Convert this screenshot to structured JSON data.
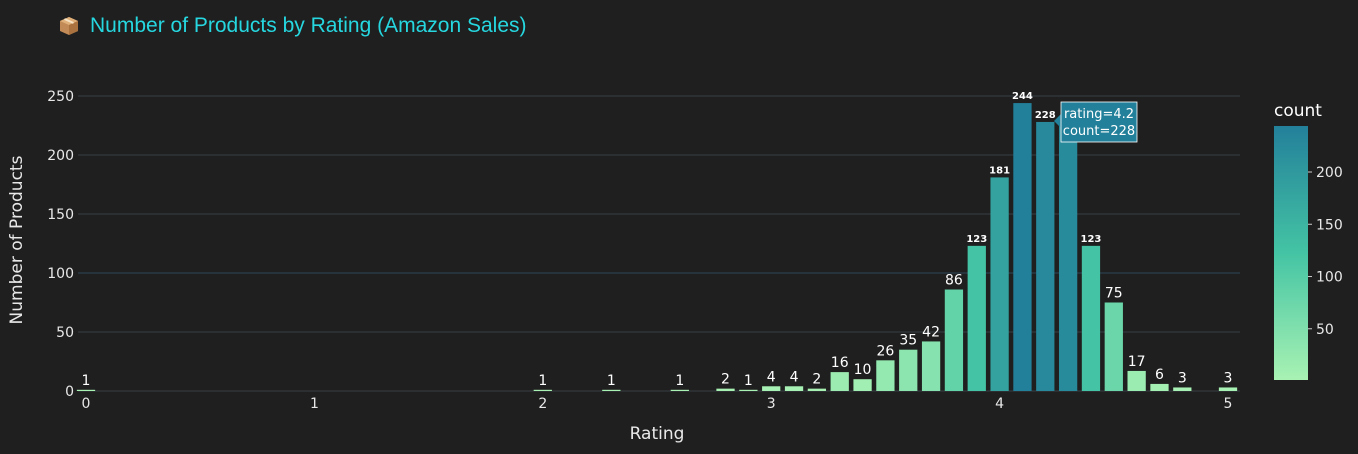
{
  "title": "Number of Products by Rating (Amazon Sales)",
  "title_icon": "package-icon",
  "colors": {
    "background": "#1f1f1f",
    "title": "#26d7e0",
    "grid": "#3a3f45",
    "text": "#e8e8e8",
    "scale_low": "#a8f2b3",
    "scale_mid": "#44c4a4",
    "scale_high": "#23809a"
  },
  "chart_data": {
    "type": "bar",
    "xlabel": "Rating",
    "ylabel": "Number of Products",
    "xlim": [
      0,
      5
    ],
    "ylim": [
      0,
      260
    ],
    "x_ticks": [
      "0",
      "1",
      "2",
      "3",
      "4",
      "5"
    ],
    "y_ticks": [
      "0",
      "50",
      "100",
      "150",
      "200",
      "250"
    ],
    "grid": true,
    "x": [
      0,
      2.0,
      2.3,
      2.6,
      2.8,
      2.9,
      3.0,
      3.1,
      3.2,
      3.3,
      3.4,
      3.5,
      3.6,
      3.7,
      3.8,
      3.9,
      4.0,
      4.1,
      4.2,
      4.3,
      4.4,
      4.5,
      4.6,
      4.7,
      4.8,
      5.0
    ],
    "values": [
      1,
      1,
      1,
      1,
      2,
      1,
      4,
      4,
      2,
      16,
      10,
      26,
      35,
      42,
      86,
      123,
      181,
      244,
      228,
      225,
      123,
      75,
      17,
      6,
      3,
      3
    ],
    "labels": [
      "1",
      "1",
      "1",
      "1",
      "2",
      "1",
      "4",
      "4",
      "2",
      "16",
      "10",
      "26",
      "35",
      "42",
      "86",
      "123",
      "181",
      "244",
      "228",
      "",
      "123",
      "75",
      "17",
      "6",
      "3",
      "3"
    ],
    "colorbar": {
      "title": "count",
      "ticks": [
        "50",
        "100",
        "150",
        "200"
      ],
      "range": [
        1,
        244
      ]
    },
    "tooltip": {
      "line1": "rating=4.2",
      "line2": "count=228"
    }
  }
}
